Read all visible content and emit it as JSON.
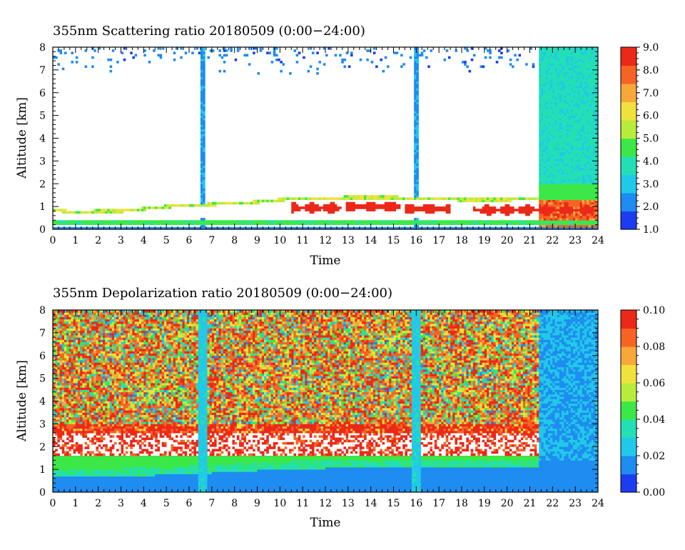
{
  "chart_data": [
    {
      "type": "heatmap",
      "title": "355nm Scattering ratio  20180509 (0:00−24:00)",
      "xlabel": "Time",
      "ylabel": "Altitude [km]",
      "xlim": [
        0,
        24
      ],
      "ylim": [
        0,
        8
      ],
      "x_ticks": [
        "0",
        "1",
        "2",
        "3",
        "4",
        "5",
        "6",
        "7",
        "8",
        "9",
        "10",
        "11",
        "12",
        "13",
        "14",
        "15",
        "16",
        "17",
        "18",
        "19",
        "20",
        "21",
        "22",
        "23",
        "24"
      ],
      "y_ticks": [
        "0",
        "1",
        "2",
        "3",
        "4",
        "5",
        "6",
        "7",
        "8"
      ],
      "colorbar": {
        "min": 1.0,
        "max": 9.0,
        "tick_labels": [
          "1.0",
          "2.0",
          "3.0",
          "4.0",
          "5.0",
          "6.0",
          "7.0",
          "8.0",
          "9.0"
        ],
        "colors": [
          "#1c3cf2",
          "#1e8cf0",
          "#22c8e8",
          "#22e0b4",
          "#3ce848",
          "#b8ec3c",
          "#f0e23c",
          "#f8a83a",
          "#f66424",
          "#ec2818"
        ]
      },
      "features": {
        "boundary_layer_top_km": [
          [
            0.0,
            0.85
          ],
          [
            1.0,
            0.75
          ],
          [
            2.0,
            0.8
          ],
          [
            3.0,
            0.8
          ],
          [
            4.0,
            0.9
          ],
          [
            5.0,
            1.0
          ],
          [
            6.0,
            1.05
          ],
          [
            7.0,
            1.1
          ],
          [
            8.0,
            1.15
          ],
          [
            9.0,
            1.2
          ],
          [
            10.0,
            1.3
          ],
          [
            11.0,
            1.35
          ],
          [
            12.0,
            1.35
          ],
          [
            13.0,
            1.4
          ],
          [
            14.0,
            1.4
          ],
          [
            15.0,
            1.4
          ],
          [
            16.0,
            1.35
          ],
          [
            17.0,
            1.35
          ],
          [
            18.0,
            1.3
          ],
          [
            19.0,
            1.3
          ],
          [
            20.0,
            1.3
          ],
          [
            21.0,
            1.35
          ],
          [
            21.5,
            1.35
          ]
        ],
        "surface_band_km": [
          0.25,
          0.4
        ],
        "aerosol_layer_scattering_ratio": 8.5,
        "aerosol_layer_segments": [
          [
            10.5,
            12.7,
            0.95
          ],
          [
            12.9,
            15.3,
            1.0
          ],
          [
            15.5,
            17.5,
            0.9
          ],
          [
            18.5,
            21.5,
            0.85
          ],
          [
            21.5,
            24.0,
            0.85
          ]
        ],
        "cloud_spikes_hours": [
          6.6,
          16.0
        ],
        "low_signal_after_hour": 21.4
      }
    },
    {
      "type": "heatmap",
      "title": "355nm Depolarization ratio  20180509 (0:00−24:00)",
      "xlabel": "Time",
      "ylabel": "Altitude [km]",
      "xlim": [
        0,
        24
      ],
      "ylim": [
        0,
        8
      ],
      "x_ticks": [
        "0",
        "1",
        "2",
        "3",
        "4",
        "5",
        "6",
        "7",
        "8",
        "9",
        "10",
        "11",
        "12",
        "13",
        "14",
        "15",
        "16",
        "17",
        "18",
        "19",
        "20",
        "21",
        "22",
        "23",
        "24"
      ],
      "y_ticks": [
        "0",
        "1",
        "2",
        "3",
        "4",
        "5",
        "6",
        "7",
        "8"
      ],
      "colorbar": {
        "min": 0.0,
        "max": 0.1,
        "tick_labels": [
          "0.00",
          "0.02",
          "0.04",
          "0.06",
          "0.08",
          "0.10"
        ],
        "colors": [
          "#1c3cf2",
          "#1e8cf0",
          "#22c8e8",
          "#22e0b4",
          "#3ce848",
          "#b8ec3c",
          "#f0e23c",
          "#f8a83a",
          "#f66424",
          "#ec2818"
        ]
      },
      "features": {
        "boundary_layer_top_km": [
          [
            0.0,
            0.95
          ],
          [
            3.0,
            1.0
          ],
          [
            6.0,
            1.1
          ],
          [
            9.0,
            1.25
          ],
          [
            12.0,
            1.35
          ],
          [
            15.0,
            1.4
          ],
          [
            18.0,
            1.4
          ],
          [
            21.5,
            1.35
          ]
        ],
        "mid_band_km": [
          1.0,
          1.6
        ],
        "white_band_km": [
          1.6,
          2.6
        ],
        "noise_above_km": 2.6,
        "cloud_spikes_hours": [
          6.6,
          16.0
        ],
        "low_signal_after_hour": 21.4
      }
    }
  ]
}
